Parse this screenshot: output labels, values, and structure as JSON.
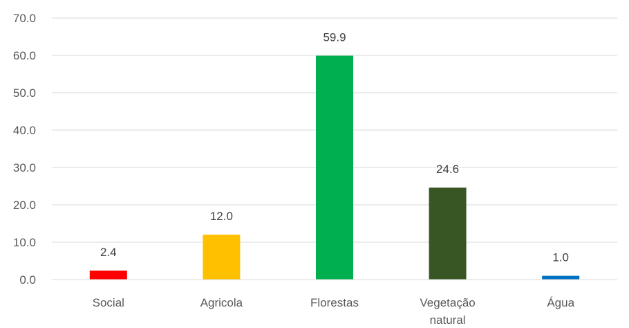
{
  "chart_data": {
    "type": "bar",
    "title": "",
    "xlabel": "",
    "ylabel": "",
    "categories": [
      "Social",
      "Agricola",
      "Florestas",
      "Vegetação natural",
      "Água"
    ],
    "category_label_lines": [
      [
        "Social"
      ],
      [
        "Agricola"
      ],
      [
        "Florestas"
      ],
      [
        "Vegetação",
        "natural"
      ],
      [
        "Água"
      ]
    ],
    "values": [
      2.4,
      12.0,
      59.9,
      24.6,
      1.0
    ],
    "data_labels": [
      "2.4",
      "12.0",
      "59.9",
      "24.6",
      "1.0"
    ],
    "colors": [
      "#ff0000",
      "#ffc000",
      "#00b050",
      "#375623",
      "#0070c0"
    ],
    "ylim": [
      0,
      70
    ],
    "yticks": [
      0,
      10,
      20,
      30,
      40,
      50,
      60,
      70
    ],
    "ytick_labels": [
      "0.0",
      "10.0",
      "20.0",
      "30.0",
      "40.0",
      "50.0",
      "60.0",
      "70.0"
    ],
    "grid": true,
    "legend": false
  }
}
